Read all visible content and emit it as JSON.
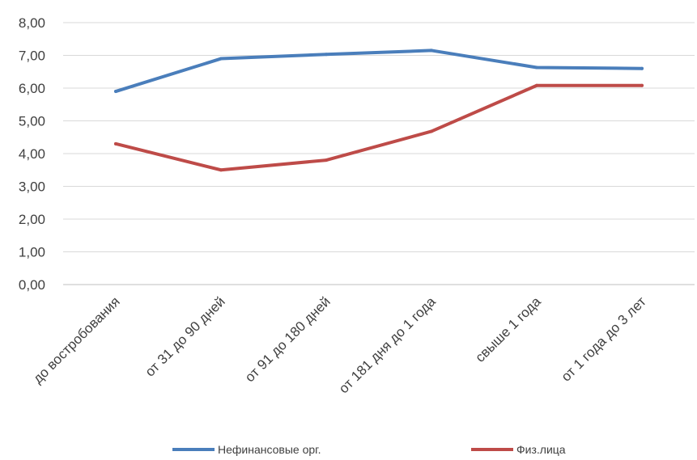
{
  "chart_data": {
    "type": "line",
    "categories": [
      "до востробования",
      "от 31 до 90 дней",
      "от 91 до 180 дней",
      "от 181 дня до 1 года",
      "свыше 1 года",
      "от 1 года до 3 лет"
    ],
    "series": [
      {
        "name": "Нефинансовые орг.",
        "color": "#4a7ebb",
        "values": [
          5.9,
          6.9,
          7.03,
          7.15,
          6.63,
          6.6
        ]
      },
      {
        "name": "Физ.лица",
        "color": "#be4b48",
        "values": [
          4.3,
          3.5,
          3.8,
          4.68,
          6.08,
          6.08
        ]
      }
    ],
    "yticks": [
      "0,00",
      "1,00",
      "2,00",
      "3,00",
      "4,00",
      "5,00",
      "6,00",
      "7,00",
      "8,00"
    ],
    "ylim": [
      0,
      8
    ],
    "grid": true,
    "legend": "bottom",
    "title": "",
    "xlabel": "",
    "ylabel": ""
  }
}
